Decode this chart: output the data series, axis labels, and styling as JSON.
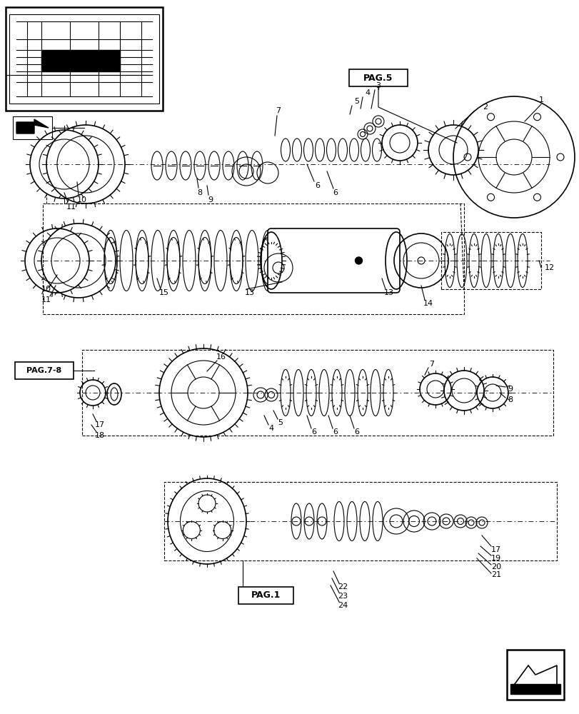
{
  "bg_color": "#ffffff",
  "line_color": "#000000",
  "fig_width": 8.12,
  "fig_height": 10.0,
  "dpi": 100,
  "labels": {
    "pag5": "PAG.5",
    "pag78": "PAG.7-8",
    "pag1": "PAG.1"
  },
  "part_numbers": [
    "1",
    "2",
    "3",
    "4",
    "5",
    "6",
    "7",
    "8",
    "9",
    "10",
    "11",
    "12",
    "13",
    "14",
    "15",
    "16",
    "17",
    "18",
    "19",
    "20",
    "21",
    "22",
    "23",
    "24"
  ],
  "gray_light": "#cccccc",
  "gray_mid": "#888888",
  "gray_dark": "#444444"
}
